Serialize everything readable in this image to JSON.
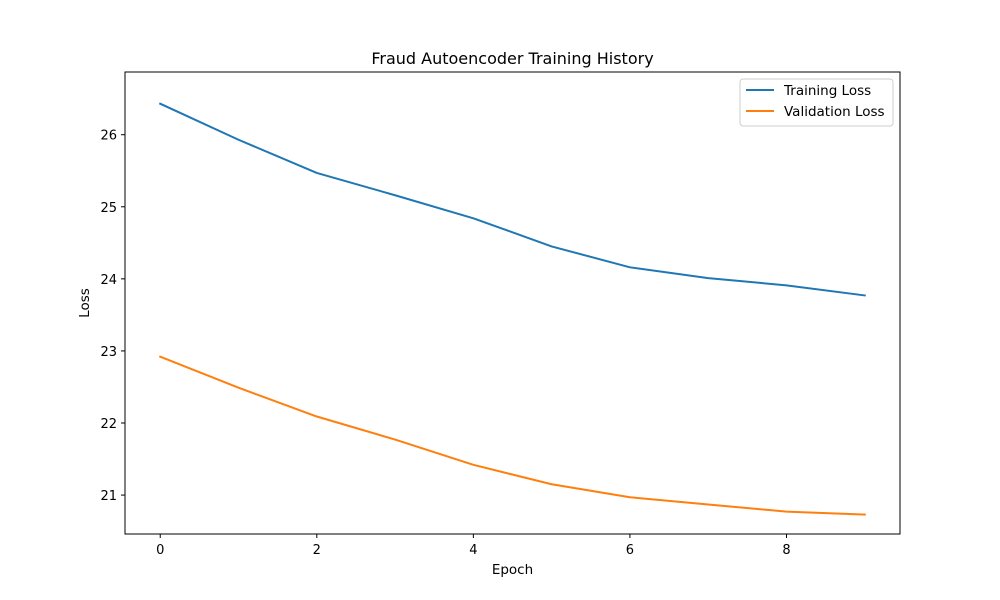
{
  "chart_data": {
    "type": "line",
    "title": "Fraud Autoencoder Training History",
    "xlabel": "Epoch",
    "ylabel": "Loss",
    "x": [
      0,
      1,
      2,
      3,
      4,
      5,
      6,
      7,
      8,
      9
    ],
    "xlim": [
      -0.45,
      9.45
    ],
    "ylim": [
      20.46,
      26.87
    ],
    "xticks": [
      0,
      2,
      4,
      6,
      8
    ],
    "yticks": [
      21,
      22,
      23,
      24,
      25,
      26
    ],
    "grid": false,
    "legend_position": "top-right",
    "series": [
      {
        "name": "Training Loss",
        "color": "#1f77b4",
        "values": [
          26.43,
          25.93,
          25.47,
          25.16,
          24.84,
          24.45,
          24.16,
          24.01,
          23.91,
          23.77
        ]
      },
      {
        "name": "Validation Loss",
        "color": "#ff7f0e",
        "values": [
          22.92,
          22.49,
          22.09,
          21.77,
          21.42,
          21.15,
          20.97,
          20.87,
          20.77,
          20.73
        ]
      }
    ]
  }
}
